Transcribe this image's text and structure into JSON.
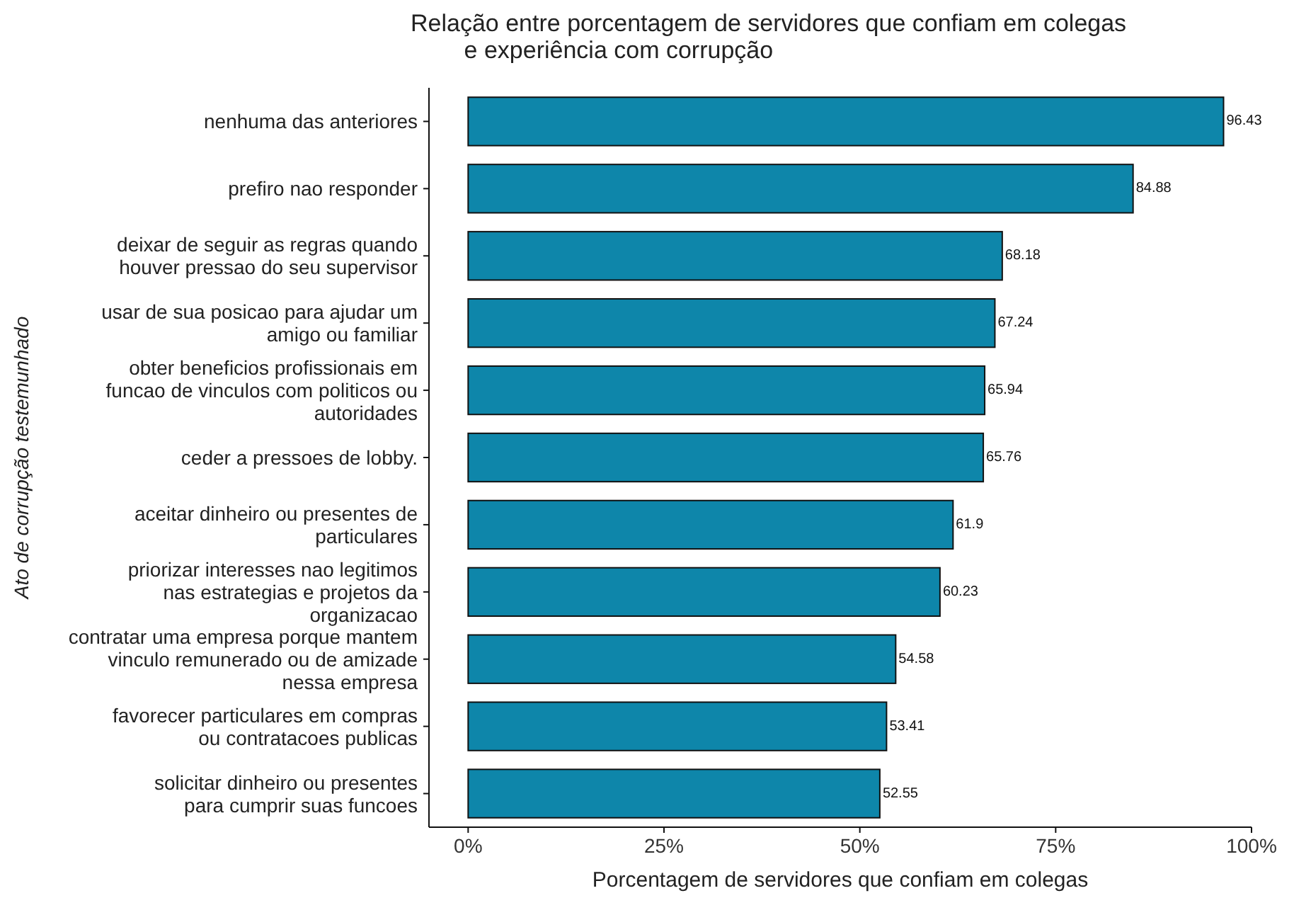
{
  "chart_data": {
    "type": "bar",
    "orientation": "horizontal",
    "title": "Relação entre porcentagem de servidores que confiam em colegas\n        e experiência com corrupção",
    "xlabel": "Porcentagem de servidores que confiam em colegas",
    "ylabel": "Ato de corrupção testemunhado",
    "categories": [
      "nenhuma das anteriores",
      "prefiro nao responder",
      "deixar de seguir as regras quando\nhouver pressao do seu supervisor",
      "usar de sua posicao para ajudar um\namigo ou familiar",
      "obter beneficios profissionais em\nfuncao de vinculos com politicos ou\nautoridades",
      "ceder a pressoes de lobby.",
      "aceitar dinheiro ou presentes de\nparticulares",
      "priorizar interesses nao legitimos\nnas estrategias e projetos da\norganizacao",
      "contratar uma empresa porque mantem\nvinculo remunerado ou de amizade\nnessa empresa",
      "favorecer particulares em compras\nou contratacoes publicas",
      "solicitar dinheiro ou presentes\npara cumprir suas funcoes"
    ],
    "values": [
      96.43,
      84.88,
      68.18,
      67.24,
      65.94,
      65.76,
      61.9,
      60.23,
      54.58,
      53.41,
      52.55
    ],
    "color": "#0e86aa",
    "data_labels": true,
    "grid": false,
    "xlim": [
      -5,
      100
    ],
    "xticks": [
      {
        "value": 0,
        "label": "0%"
      },
      {
        "value": 25,
        "label": "25%"
      },
      {
        "value": 50,
        "label": "50%"
      },
      {
        "value": 75,
        "label": "75%"
      },
      {
        "value": 100,
        "label": "100%"
      }
    ]
  }
}
